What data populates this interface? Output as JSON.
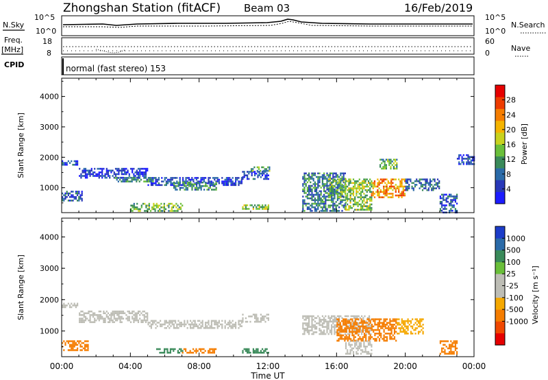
{
  "header": {
    "station": "Zhongshan Station (fitACF)",
    "beam": "Beam 03",
    "date": "16/Feb/2019"
  },
  "summary": {
    "nsky_label": "N.Sky",
    "nsky_ticks": [
      "10^5",
      "10^0"
    ],
    "nsearch_label": "N.Search",
    "nsearch_ticks": [
      "10^5",
      "10^0"
    ],
    "freq_label": "Freq.",
    "freq_unit": "[MHz]",
    "freq_ticks": [
      "18",
      "8"
    ],
    "nave_label": "Nave",
    "nave_ticks": [
      "60",
      "0"
    ],
    "cpid_label": "CPID",
    "mode_text": "normal (fast stereo) 153"
  },
  "colors": {
    "power_scale": [
      "#1c1cff",
      "#2838b8",
      "#2a6aa8",
      "#3a8a5a",
      "#6abf3a",
      "#c8d21e",
      "#f5b400",
      "#f57d00",
      "#ee3c00",
      "#e60000"
    ],
    "velocity_scale": [
      "#e60000",
      "#f04800",
      "#f57d00",
      "#f5a800",
      "#bdbdb5",
      "#bdbdb5",
      "#6abf3a",
      "#3a8a5a",
      "#2a6aa8",
      "#1c3cc8"
    ],
    "velocity_ground": "#bdbdb5"
  },
  "chart_data": [
    {
      "type": "heatmap",
      "name": "power",
      "xlabel": "",
      "ylabel": "Slant Range [km]",
      "x_ticks": [
        "00:00",
        "04:00",
        "08:00",
        "12:00",
        "16:00",
        "20:00",
        "00:00"
      ],
      "x_range_hours": [
        0,
        24
      ],
      "y_ticks": [
        "1000",
        "2000",
        "3000",
        "4000"
      ],
      "ylim": [
        180,
        4600
      ],
      "colorbar": {
        "label": "Power [dB]",
        "ticks": [
          "4",
          "8",
          "12",
          "16",
          "20",
          "24",
          "28"
        ],
        "range": [
          0,
          32
        ]
      },
      "echo_regions": [
        {
          "t": [
            0.0,
            1.0
          ],
          "r": [
            1750,
            1900
          ],
          "level": 5
        },
        {
          "t": [
            1.0,
            5.0
          ],
          "r": [
            1300,
            1650
          ],
          "level": 4
        },
        {
          "t": [
            5.0,
            10.5
          ],
          "r": [
            1100,
            1350
          ],
          "level": 5
        },
        {
          "t": [
            10.5,
            12.0
          ],
          "r": [
            1300,
            1550
          ],
          "level": 5
        },
        {
          "t": [
            11.0,
            12.1
          ],
          "r": [
            1550,
            1700
          ],
          "level": 12
        },
        {
          "t": [
            0.0,
            1.2
          ],
          "r": [
            600,
            900
          ],
          "level": 7
        },
        {
          "t": [
            3.0,
            5.5
          ],
          "r": [
            1200,
            1350
          ],
          "level": 10
        },
        {
          "t": [
            4.0,
            7.0
          ],
          "r": [
            250,
            500
          ],
          "level": 14
        },
        {
          "t": [
            6.5,
            9.0
          ],
          "r": [
            950,
            1200
          ],
          "level": 10
        },
        {
          "t": [
            10.5,
            12.0
          ],
          "r": [
            300,
            450
          ],
          "level": 16
        },
        {
          "t": [
            14.0,
            16.5
          ],
          "r": [
            250,
            1500
          ],
          "level": 9
        },
        {
          "t": [
            15.5,
            16.5
          ],
          "r": [
            700,
            1300
          ],
          "level": 14
        },
        {
          "t": [
            16.5,
            18.0
          ],
          "r": [
            250,
            1300
          ],
          "level": 15
        },
        {
          "t": [
            18.0,
            20.0
          ],
          "r": [
            700,
            1300
          ],
          "level": 23
        },
        {
          "t": [
            20.0,
            22.0
          ],
          "r": [
            900,
            1300
          ],
          "level": 8
        },
        {
          "t": [
            18.5,
            19.5
          ],
          "r": [
            1600,
            1950
          ],
          "level": 13
        },
        {
          "t": [
            22.0,
            23.0
          ],
          "r": [
            200,
            800
          ],
          "level": 6
        },
        {
          "t": [
            23.0,
            24.0
          ],
          "r": [
            1800,
            2100
          ],
          "level": 5
        }
      ]
    },
    {
      "type": "heatmap",
      "name": "velocity",
      "xlabel": "Time UT",
      "ylabel": "Slant Range [km]",
      "x_ticks": [
        "00:00",
        "04:00",
        "08:00",
        "12:00",
        "16:00",
        "20:00",
        "00:00"
      ],
      "x_range_hours": [
        0,
        24
      ],
      "y_ticks": [
        "1000",
        "2000",
        "3000",
        "4000"
      ],
      "ylim": [
        180,
        4600
      ],
      "colorbar": {
        "label": "Velocity [m s⁻¹]",
        "ticks": [
          "1000",
          "500",
          "100",
          "25",
          "-25",
          "-100",
          "-500",
          "-1000"
        ]
      },
      "echo_regions": [
        {
          "t": [
            0.0,
            1.0
          ],
          "r": [
            1750,
            1900
          ],
          "velocity": 0
        },
        {
          "t": [
            1.0,
            5.0
          ],
          "r": [
            1300,
            1650
          ],
          "velocity": 0
        },
        {
          "t": [
            5.0,
            10.5
          ],
          "r": [
            1100,
            1350
          ],
          "velocity": 0
        },
        {
          "t": [
            10.5,
            12.0
          ],
          "r": [
            1300,
            1550
          ],
          "velocity": 0
        },
        {
          "t": [
            14.0,
            18.0
          ],
          "r": [
            900,
            1500
          ],
          "velocity": 0
        },
        {
          "t": [
            0.0,
            1.5
          ],
          "r": [
            400,
            700
          ],
          "velocity": -150
        },
        {
          "t": [
            5.5,
            7.0
          ],
          "r": [
            280,
            450
          ],
          "velocity": 300
        },
        {
          "t": [
            7.0,
            9.0
          ],
          "r": [
            280,
            450
          ],
          "velocity": -250
        },
        {
          "t": [
            10.5,
            12.0
          ],
          "r": [
            300,
            450
          ],
          "velocity": 150
        },
        {
          "t": [
            16.0,
            19.5
          ],
          "r": [
            700,
            1400
          ],
          "velocity": -300
        },
        {
          "t": [
            19.5,
            21.0
          ],
          "r": [
            900,
            1400
          ],
          "velocity": -60
        },
        {
          "t": [
            16.5,
            18.0
          ],
          "r": [
            250,
            700
          ],
          "velocity": 0
        },
        {
          "t": [
            22.0,
            23.0
          ],
          "r": [
            300,
            700
          ],
          "velocity": -150
        }
      ]
    }
  ]
}
